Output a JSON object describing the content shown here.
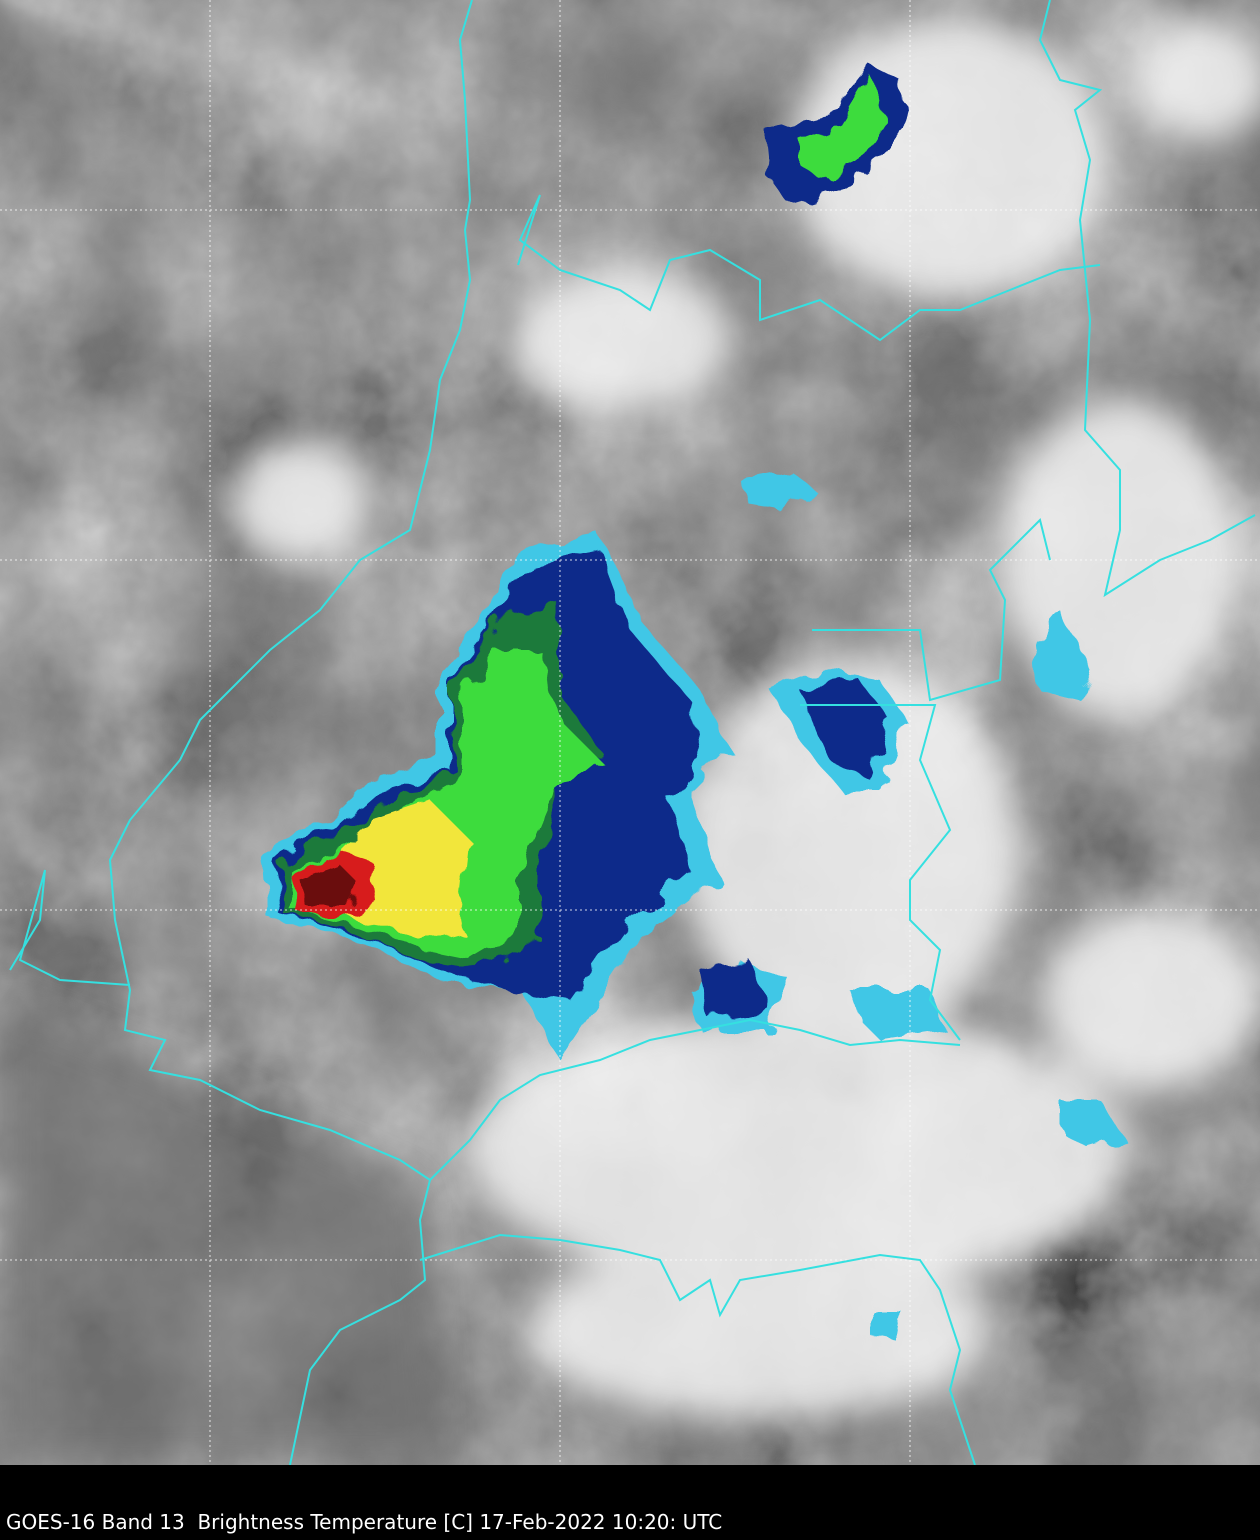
{
  "caption": "GOES-16 Band 13  Brightness Temperature [C] 17-Feb-2022 10:20: UTC"
}
